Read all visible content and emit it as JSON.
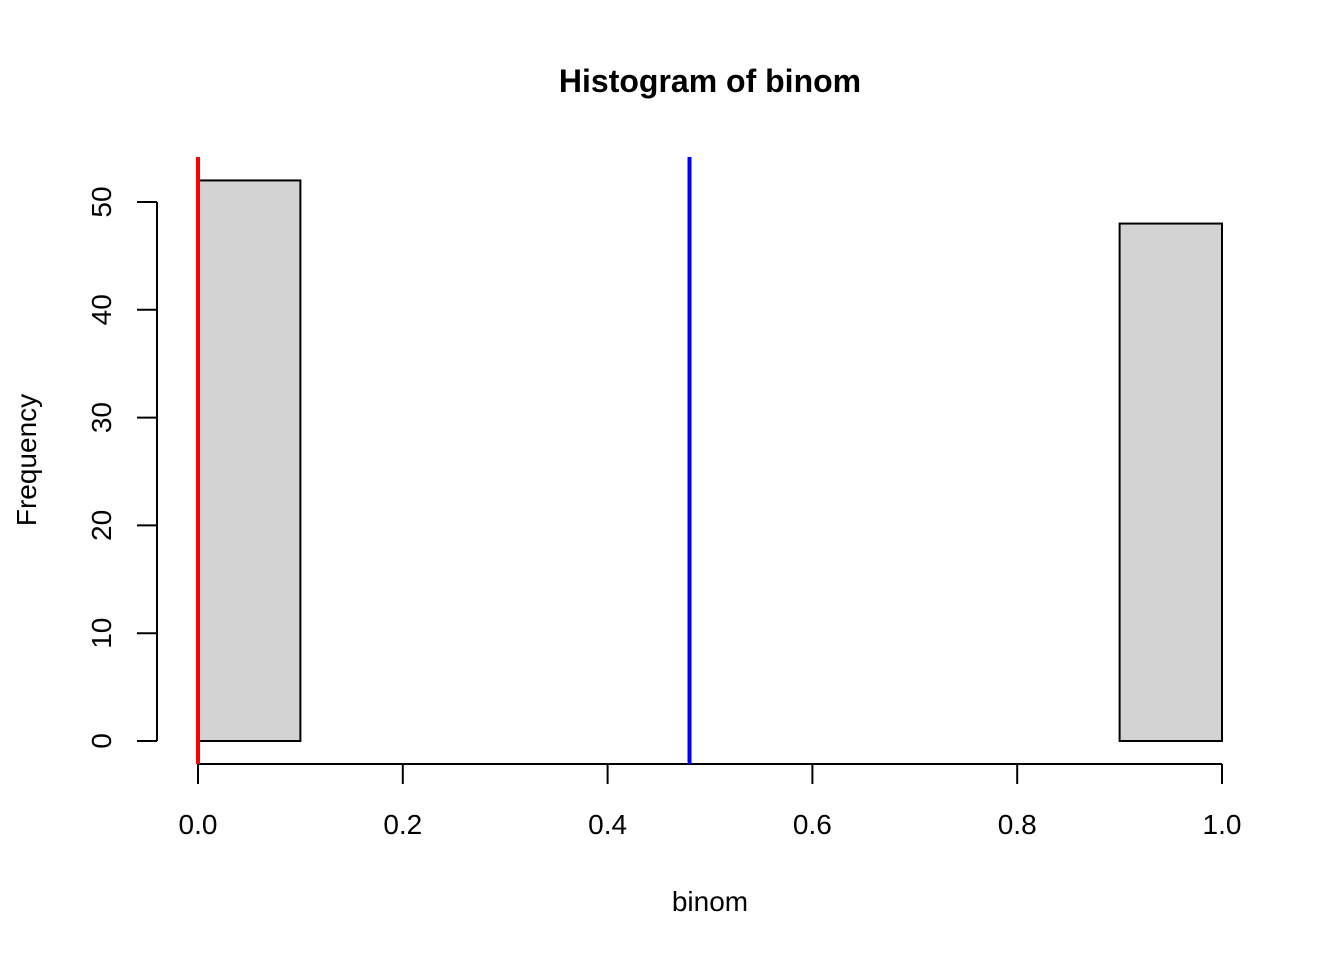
{
  "chart_data": {
    "type": "bar",
    "title": "Histogram of binom",
    "xlabel": "binom",
    "ylabel": "Frequency",
    "bins": [
      {
        "start": 0.0,
        "end": 0.1,
        "count": 52
      },
      {
        "start": 0.1,
        "end": 0.2,
        "count": 0
      },
      {
        "start": 0.2,
        "end": 0.3,
        "count": 0
      },
      {
        "start": 0.3,
        "end": 0.4,
        "count": 0
      },
      {
        "start": 0.4,
        "end": 0.5,
        "count": 0
      },
      {
        "start": 0.5,
        "end": 0.6,
        "count": 0
      },
      {
        "start": 0.6,
        "end": 0.7,
        "count": 0
      },
      {
        "start": 0.7,
        "end": 0.8,
        "count": 0
      },
      {
        "start": 0.8,
        "end": 0.9,
        "count": 0
      },
      {
        "start": 0.9,
        "end": 1.0,
        "count": 48
      }
    ],
    "xlim": [
      0,
      1
    ],
    "ylim": [
      0,
      54
    ],
    "x_ticks": [
      "0.0",
      "0.2",
      "0.4",
      "0.6",
      "0.8",
      "1.0"
    ],
    "y_ticks": [
      "0",
      "10",
      "20",
      "30",
      "40",
      "50"
    ],
    "bar_fill": "#d3d3d3",
    "bar_stroke": "#000000",
    "grid": false,
    "vertical_lines": [
      {
        "x": 0.0,
        "color": "#ff0000"
      },
      {
        "x": 0.48,
        "color": "#0000ff"
      }
    ]
  }
}
